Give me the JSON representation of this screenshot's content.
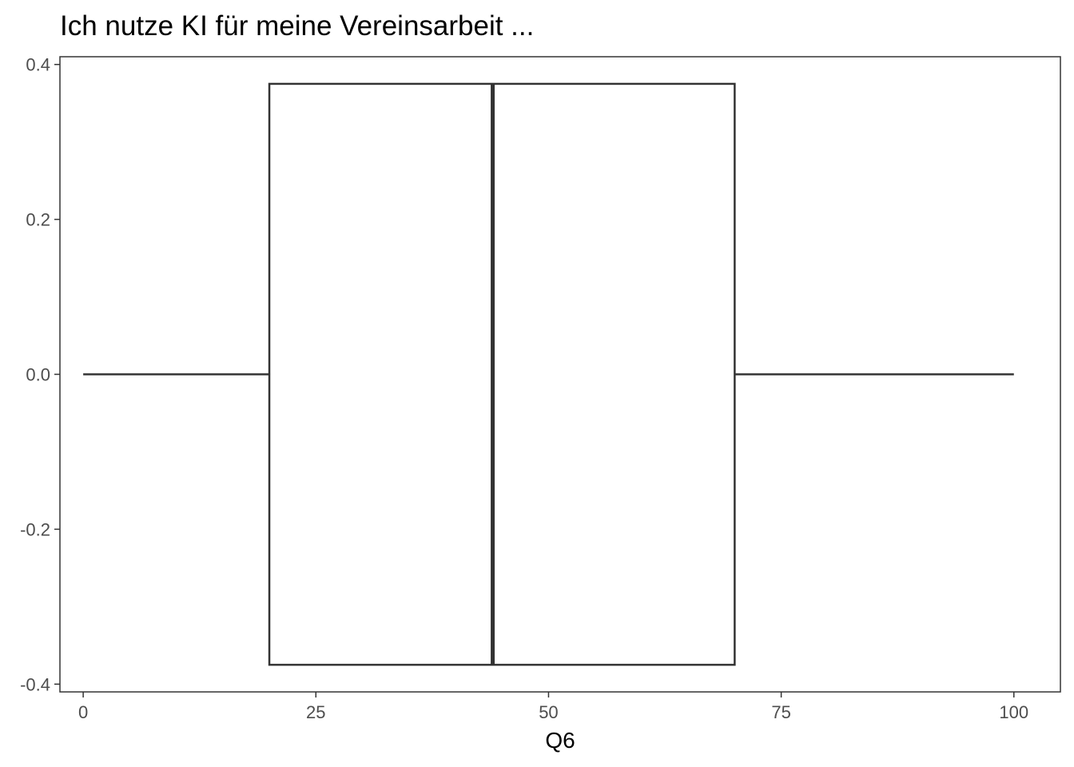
{
  "chart_data": {
    "type": "boxplot",
    "title": "Ich nutze KI für meine Vereinsarbeit ...",
    "xlabel": "Q6",
    "ylabel": "",
    "xlim": [
      -2.5,
      105
    ],
    "ylim": [
      -0.41,
      0.41
    ],
    "x_ticks": [
      0,
      25,
      50,
      75,
      100
    ],
    "x_tick_labels": [
      "0",
      "25",
      "50",
      "75",
      "100"
    ],
    "y_ticks": [
      0.4,
      0.2,
      0.0,
      -0.2,
      -0.4
    ],
    "y_tick_labels": [
      "0.4",
      "0.2",
      "0.0",
      "-0.2",
      "-0.4"
    ],
    "box": {
      "min": 0,
      "q1": 20,
      "median": 44,
      "q3": 70,
      "max": 100,
      "box_ymin": -0.375,
      "box_ymax": 0.375,
      "center_y": 0
    },
    "grid": false,
    "legend": "none",
    "colors": {
      "box_stroke": "#333333",
      "box_fill": "#ffffff",
      "panel_border": "#333333",
      "tick_color": "#333333",
      "tick_label_color": "#4d4d4d"
    }
  }
}
